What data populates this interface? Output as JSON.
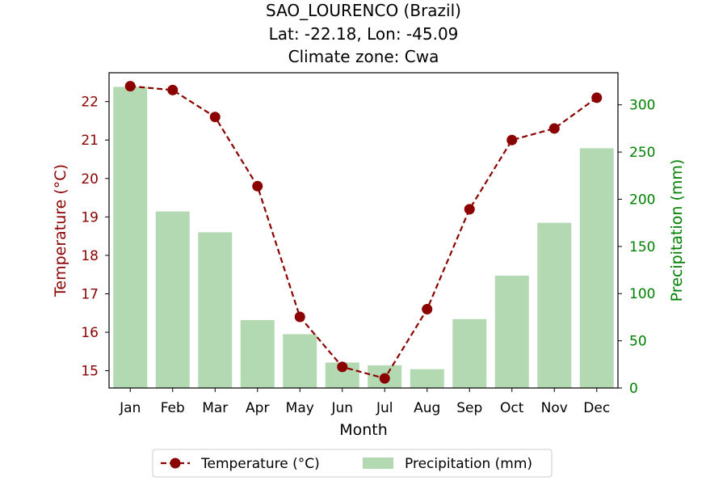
{
  "chart_data": {
    "type": "bar+line",
    "title": [
      "SAO_LOURENCO (Brazil)",
      "Lat: -22.18, Lon: -45.09",
      "Climate zone: Cwa"
    ],
    "xlabel": "Month",
    "ylabel_left": "Temperature (°C)",
    "ylabel_right": "Precipitation (mm)",
    "categories": [
      "Jan",
      "Feb",
      "Mar",
      "Apr",
      "May",
      "Jun",
      "Jul",
      "Aug",
      "Sep",
      "Oct",
      "Nov",
      "Dec"
    ],
    "ylim_left": [
      14.55,
      22.75
    ],
    "yticks_left": [
      15,
      16,
      17,
      18,
      19,
      20,
      21,
      22
    ],
    "ylim_right": [
      0,
      334
    ],
    "yticks_right": [
      0,
      50,
      100,
      150,
      200,
      250,
      300
    ],
    "series": [
      {
        "name": "Temperature (°C)",
        "kind": "line",
        "axis": "left",
        "color": "#8b0000",
        "values": [
          22.4,
          22.3,
          21.6,
          19.8,
          16.4,
          15.1,
          14.8,
          16.6,
          19.2,
          21.0,
          21.3,
          22.1
        ]
      },
      {
        "name": "Precipitation (mm)",
        "kind": "bar",
        "axis": "right",
        "color": "#b2d9b2",
        "values": [
          319,
          187,
          165,
          72,
          57,
          27,
          24,
          20,
          73,
          119,
          175,
          254
        ]
      }
    ],
    "legend": "bottom-center",
    "grid": false,
    "colors": {
      "temperature_axis": "#8b0000",
      "precipitation_axis": "#008000"
    }
  }
}
